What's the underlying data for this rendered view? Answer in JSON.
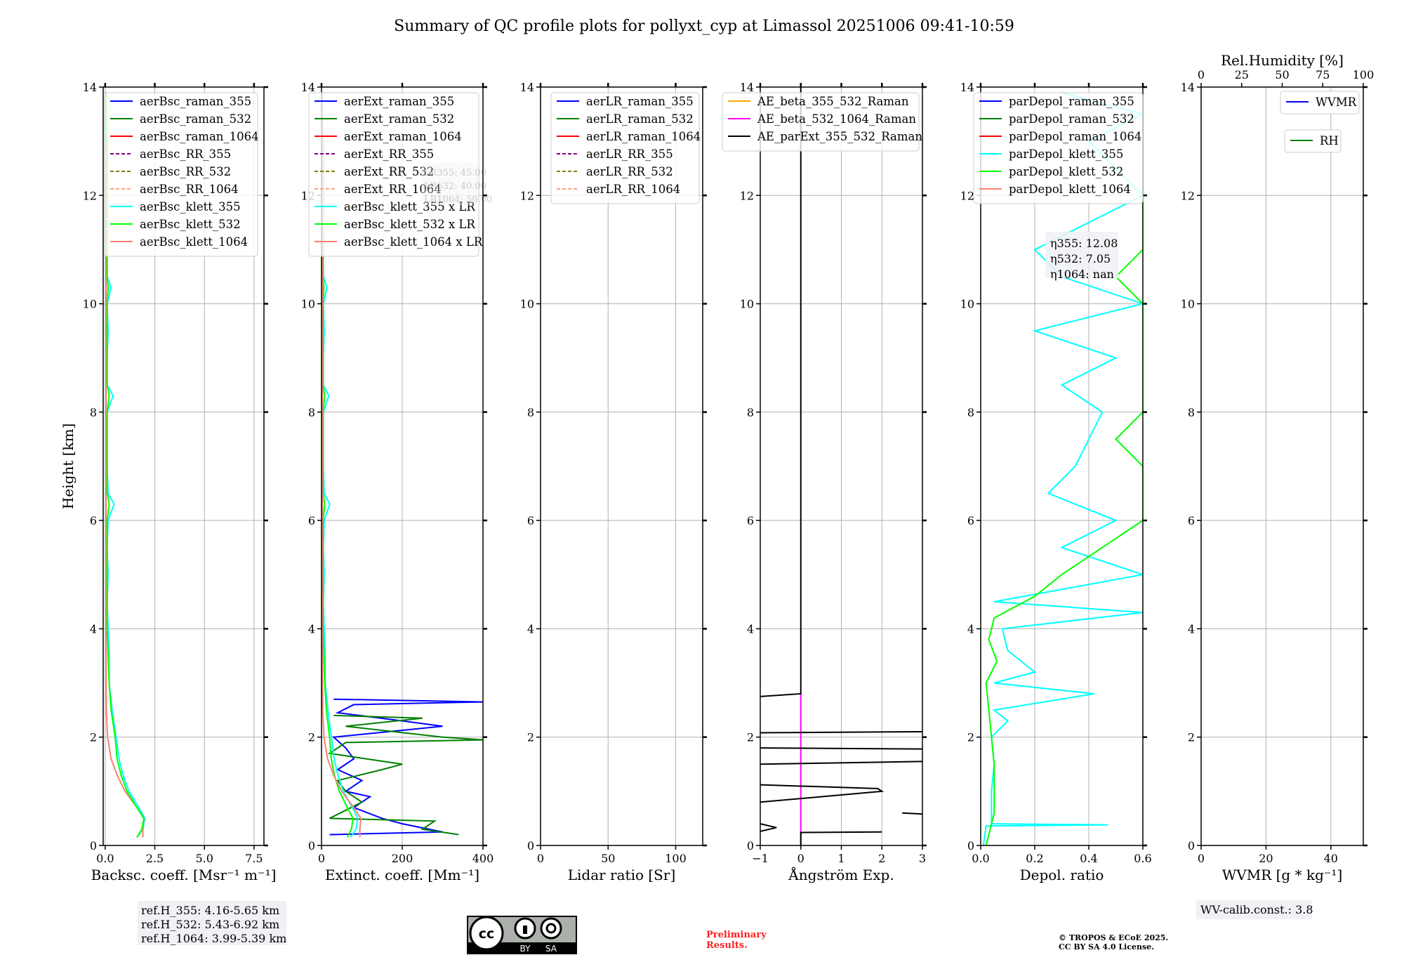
{
  "title": "Summary of QC profile plots for pollyxt_cyp at Limassol 20251006 09:41-10:59",
  "ylabel": "Height [km]",
  "yticks": [
    "0",
    "2",
    "4",
    "6",
    "8",
    "10",
    "12",
    "14"
  ],
  "chart_data": [
    {
      "type": "line",
      "xlabel": "Backsc. coeff. [Msr⁻¹ m⁻¹]",
      "xlim": [
        -0.1,
        8
      ],
      "ylim": [
        0,
        14
      ],
      "xticks": [
        "0.0",
        "2.5",
        "5.0",
        "7.5"
      ],
      "xtick_values": [
        0,
        2.5,
        5,
        7.5
      ],
      "legend": [
        {
          "label": "aerBsc_raman_355",
          "color": "#0000ff",
          "dash": false
        },
        {
          "label": "aerBsc_raman_532",
          "color": "#008000",
          "dash": false
        },
        {
          "label": "aerBsc_raman_1064",
          "color": "#ff0000",
          "dash": false
        },
        {
          "label": "aerBsc_RR_355",
          "color": "#800080",
          "dash": true
        },
        {
          "label": "aerBsc_RR_532",
          "color": "#808000",
          "dash": true
        },
        {
          "label": "aerBsc_RR_1064",
          "color": "#ffa07a",
          "dash": true
        },
        {
          "label": "aerBsc_klett_355",
          "color": "#00ffff",
          "dash": false
        },
        {
          "label": "aerBsc_klett_532",
          "color": "#00ff00",
          "dash": false
        },
        {
          "label": "aerBsc_klett_1064",
          "color": "#fa8072",
          "dash": false
        }
      ],
      "heights": [
        0.15,
        0.3,
        0.5,
        0.7,
        1.0,
        1.3,
        1.6,
        2.0,
        2.5,
        3.0,
        3.5,
        4,
        4.5,
        5,
        5.5,
        6,
        6.3,
        6.5,
        7,
        7.5,
        8,
        8.3,
        8.5,
        9,
        9.5,
        10,
        10.3,
        10.5,
        11,
        11.5,
        12,
        12.5,
        13,
        13.5,
        13.9
      ],
      "series": [
        {
          "name": "aerBsc_klett_355",
          "color": "#00ffff",
          "values": [
            1.6,
            1.9,
            2.0,
            1.7,
            1.2,
            0.9,
            0.7,
            0.55,
            0.35,
            0.2,
            0.2,
            0.15,
            0.1,
            0.15,
            0.1,
            0.15,
            0.45,
            0.15,
            0.1,
            0.1,
            0.1,
            0.4,
            0.1,
            0.1,
            0.15,
            0.1,
            0.3,
            0.1,
            0.1,
            0.1,
            0.1,
            0.1,
            0.1,
            0.05,
            0.05
          ]
        },
        {
          "name": "aerBsc_klett_1064",
          "color": "#fa8072",
          "values": [
            1.9,
            1.9,
            1.95,
            1.6,
            1.0,
            0.6,
            0.3,
            0.12,
            0.06,
            0.05,
            0.05,
            0.04,
            0.04,
            0.04,
            0.04,
            0.04,
            0.05,
            0.04,
            0.04,
            0.04,
            0.04,
            0.05,
            0.04,
            0.04,
            0.04,
            0.04,
            0.05,
            0.04,
            0.04,
            0.04,
            0.04,
            0.04,
            0.04,
            0.03,
            0.03
          ]
        },
        {
          "name": "aerBsc_klett_532",
          "color": "#00ff00",
          "values": [
            1.6,
            1.85,
            1.95,
            1.6,
            1.1,
            0.8,
            0.6,
            0.5,
            0.3,
            0.2,
            0.15,
            0.1,
            0.1,
            0.1,
            0.1,
            0.1,
            0.2,
            0.1,
            0.1,
            0.1,
            0.1,
            0.2,
            0.1,
            0.1,
            0.1,
            0.1,
            0.15,
            0.1,
            0.1,
            0.1,
            0.1,
            0.1,
            0.1,
            0.05,
            0.05
          ]
        }
      ]
    },
    {
      "type": "line",
      "xlabel": "Extinct. coeff. [Mm⁻¹]",
      "xlim": [
        0,
        400
      ],
      "ylim": [
        0,
        14
      ],
      "xticks": [
        "0",
        "200",
        "400"
      ],
      "xtick_values": [
        0,
        200,
        400
      ],
      "legend": [
        {
          "label": "aerExt_raman_355",
          "color": "#0000ff",
          "dash": false
        },
        {
          "label": "aerExt_raman_532",
          "color": "#008000",
          "dash": false
        },
        {
          "label": "aerExt_raman_1064",
          "color": "#ff0000",
          "dash": false
        },
        {
          "label": "aerExt_RR_355",
          "color": "#800080",
          "dash": true
        },
        {
          "label": "aerExt_RR_532",
          "color": "#808000",
          "dash": true
        },
        {
          "label": "aerExt_RR_1064",
          "color": "#ffa07a",
          "dash": true
        },
        {
          "label": "aerBsc_klett_355 x LR",
          "color": "#00ffff",
          "dash": false
        },
        {
          "label": "aerBsc_klett_532 x LR",
          "color": "#00ff00",
          "dash": false
        },
        {
          "label": "aerBsc_klett_1064 x LR",
          "color": "#fa8072",
          "dash": false
        }
      ],
      "lidar_ratios": {
        "lines": [
          "LR355: 45.00",
          "LR532: 40.00",
          "LR1064: 50.00"
        ],
        "values": [
          45,
          40,
          50
        ]
      },
      "series": [
        {
          "name": "aerExt_raman_355",
          "color": "#0000ff",
          "heights": [
            0.2,
            0.25,
            0.4,
            0.5,
            0.7,
            0.9,
            1.0,
            1.2,
            1.4,
            1.6,
            1.8,
            2.0,
            2.2,
            2.3,
            2.45,
            2.6,
            2.65,
            2.7
          ],
          "values": [
            20,
            300,
            200,
            150,
            80,
            120,
            60,
            100,
            40,
            80,
            60,
            30,
            300,
            200,
            40,
            80,
            400,
            30
          ]
        },
        {
          "name": "aerExt_raman_532",
          "color": "#008000",
          "heights": [
            0.2,
            0.3,
            0.45,
            0.5,
            0.8,
            1.0,
            1.2,
            1.4,
            1.5,
            1.7,
            1.9,
            1.95,
            2.0,
            2.2,
            2.35,
            2.4
          ],
          "values": [
            340,
            250,
            280,
            20,
            100,
            60,
            40,
            150,
            200,
            20,
            60,
            400,
            300,
            60,
            250,
            30
          ]
        }
      ]
    },
    {
      "type": "line",
      "xlabel": "Lidar ratio [Sr]",
      "xlim": [
        0,
        120
      ],
      "ylim": [
        0,
        14
      ],
      "xticks": [
        "0",
        "50",
        "100"
      ],
      "xtick_values": [
        0,
        50,
        100
      ],
      "legend": [
        {
          "label": "aerLR_raman_355",
          "color": "#0000ff",
          "dash": false
        },
        {
          "label": "aerLR_raman_532",
          "color": "#008000",
          "dash": false
        },
        {
          "label": "aerLR_raman_1064",
          "color": "#ff0000",
          "dash": false
        },
        {
          "label": "aerLR_RR_355",
          "color": "#800080",
          "dash": true
        },
        {
          "label": "aerLR_RR_532",
          "color": "#808000",
          "dash": true
        },
        {
          "label": "aerLR_RR_1064",
          "color": "#ffa07a",
          "dash": true
        }
      ],
      "series": []
    },
    {
      "type": "line",
      "xlabel": "Ångström Exp.",
      "xlim": [
        -1,
        3
      ],
      "ylim": [
        0,
        14
      ],
      "xticks": [
        "−1",
        "0",
        "1",
        "2",
        "3"
      ],
      "xtick_values": [
        -1,
        0,
        1,
        2,
        3
      ],
      "legend": [
        {
          "label": "AE_beta_355_532_Raman",
          "color": "#ffa500",
          "dash": false
        },
        {
          "label": "AE_beta_532_1064_Raman",
          "color": "#ff00ff",
          "dash": false
        },
        {
          "label": "AE_parExt_355_532_Raman",
          "color": "#000000",
          "dash": false
        }
      ],
      "segments": [
        {
          "name": "AE_beta_532_1064_Raman",
          "color": "#ff00ff",
          "points": [
            [
              0,
              0
            ],
            [
              0,
              2.8
            ]
          ]
        },
        {
          "name": "AE_parExt_355_532_Raman",
          "color": "#000000",
          "points": [
            [
              0,
              14
            ],
            [
              0,
              2.8
            ],
            [
              -1,
              2.75
            ]
          ]
        },
        {
          "name": "AE_parExt_355_532_Raman",
          "color": "#000000",
          "points": [
            [
              3,
              2.1
            ],
            [
              -1,
              2.08
            ]
          ]
        },
        {
          "name": "AE_parExt_355_532_Raman",
          "color": "#000000",
          "points": [
            [
              3,
              1.78
            ],
            [
              -1,
              1.8
            ]
          ]
        },
        {
          "name": "AE_parExt_355_532_Raman",
          "color": "#000000",
          "points": [
            [
              3,
              1.55
            ],
            [
              -1,
              1.5
            ]
          ]
        },
        {
          "name": "AE_parExt_355_532_Raman",
          "color": "#000000",
          "points": [
            [
              -1,
              1.12
            ],
            [
              1.9,
              1.05
            ],
            [
              2,
              1.0
            ],
            [
              -1,
              0.8
            ]
          ]
        },
        {
          "name": "AE_parExt_355_532_Raman",
          "color": "#000000",
          "points": [
            [
              3,
              0.58
            ],
            [
              2.5,
              0.6
            ]
          ]
        },
        {
          "name": "AE_parExt_355_532_Raman",
          "color": "#000000",
          "points": [
            [
              -1,
              0.4
            ],
            [
              -0.6,
              0.33
            ],
            [
              -1,
              0.26
            ]
          ]
        },
        {
          "name": "AE_parExt_355_532_Raman",
          "color": "#000000",
          "points": [
            [
              2,
              0.25
            ],
            [
              0,
              0.24
            ],
            [
              0,
              0
            ]
          ]
        }
      ]
    },
    {
      "type": "line",
      "xlabel": "Depol. ratio",
      "xlim": [
        0,
        0.6
      ],
      "ylim": [
        0,
        14
      ],
      "xticks": [
        "0.0",
        "0.2",
        "0.4",
        "0.6"
      ],
      "xtick_values": [
        0,
        0.2,
        0.4,
        0.6
      ],
      "legend": [
        {
          "label": "parDepol_raman_355",
          "color": "#0000ff",
          "dash": false
        },
        {
          "label": "parDepol_raman_532",
          "color": "#008000",
          "dash": false
        },
        {
          "label": "parDepol_raman_1064",
          "color": "#ff0000",
          "dash": false
        },
        {
          "label": "parDepol_klett_355",
          "color": "#00ffff",
          "dash": false
        },
        {
          "label": "parDepol_klett_532",
          "color": "#00ff00",
          "dash": false
        },
        {
          "label": "parDepol_klett_1064",
          "color": "#fa8072",
          "dash": false
        }
      ],
      "eta": {
        "lines": [
          "η355: 12.08",
          "η532: 7.05",
          "η1064: nan"
        ],
        "values": [
          12.08,
          7.05,
          null
        ]
      },
      "series": [
        {
          "name": "parDepol_klett_355",
          "color": "#00ffff",
          "heights": [
            0.0,
            0.36,
            0.38,
            0.4,
            0.6,
            1.0,
            1.5,
            2.0,
            2.3,
            2.5,
            2.8,
            3.0,
            3.2,
            3.6,
            4.0,
            4.3,
            4.5,
            5,
            5.5,
            6,
            6.5,
            7,
            7.5,
            8,
            8.5,
            9,
            9.5,
            10,
            10.5,
            11,
            11.5,
            12,
            12.5,
            13,
            13.5,
            13.9
          ],
          "values": [
            0.01,
            0.02,
            0.47,
            0.04,
            0.04,
            0.04,
            0.05,
            0.04,
            0.1,
            0.05,
            0.42,
            0.05,
            0.2,
            0.1,
            0.08,
            0.6,
            0.05,
            0.6,
            0.3,
            0.5,
            0.25,
            0.35,
            0.4,
            0.45,
            0.3,
            0.5,
            0.2,
            0.6,
            0.3,
            0.2,
            0.4,
            0.6,
            0.5,
            0.4,
            0.6,
            0.3
          ]
        },
        {
          "name": "parDepol_klett_532",
          "color": "#00ff00",
          "heights": [
            0.0,
            0.4,
            0.6,
            1.0,
            1.5,
            2.0,
            2.5,
            3.0,
            3.4,
            3.8,
            4.2,
            4.6,
            5,
            5.5,
            6,
            6.5,
            7,
            7.5,
            8,
            8.5,
            9,
            9.5,
            10,
            10.5,
            11,
            11.5,
            12,
            12.5,
            13,
            13.5,
            13.9
          ],
          "values": [
            0.02,
            0.04,
            0.05,
            0.05,
            0.05,
            0.04,
            0.03,
            0.02,
            0.06,
            0.03,
            0.05,
            0.2,
            0.3,
            0.45,
            0.6,
            0.6,
            0.6,
            0.5,
            0.6,
            0.6,
            0.6,
            0.6,
            0.6,
            0.5,
            0.6,
            0.6,
            0.6,
            0.6,
            0.6,
            0.6,
            0.6
          ]
        }
      ]
    },
    {
      "type": "line",
      "xlabel": "WVMR [g * kg⁻¹]",
      "xlim": [
        0,
        50
      ],
      "ylim": [
        0,
        14
      ],
      "xticks": [
        "0",
        "20",
        "40"
      ],
      "xtick_values": [
        0,
        20,
        40
      ],
      "top_xlabel": "Rel.Humidity [%]",
      "top_xlim": [
        0,
        100
      ],
      "top_xticks": [
        "0",
        "25",
        "50",
        "75",
        "100"
      ],
      "top_xtick_values": [
        0,
        25,
        50,
        75,
        100
      ],
      "legend": [
        {
          "label": "WVMR",
          "color": "#0000ff",
          "dash": false
        },
        {
          "label": "RH",
          "color": "#008000",
          "dash": false
        }
      ],
      "series": []
    }
  ],
  "footer": {
    "ref_heights": [
      "ref.H_355: 4.16-5.65 km",
      "ref.H_532: 5.43-6.92 km",
      "ref.H_1064: 3.99-5.39 km"
    ],
    "license_badge": {
      "cc": "cc",
      "by": "BY",
      "sa": "SA"
    },
    "preliminary": [
      "Preliminary",
      "Results."
    ],
    "copyright": [
      "© TROPOS & ECoE 2025.",
      "CC BY SA 4.0 License."
    ],
    "wv_calib": "WV-calib.const.: 3.8"
  },
  "colors": {
    "grid": "#b0b0b0",
    "legend_bg": "#ffffff",
    "textbox_bg": "#f0f1f5",
    "preliminary": "#ff2020"
  }
}
